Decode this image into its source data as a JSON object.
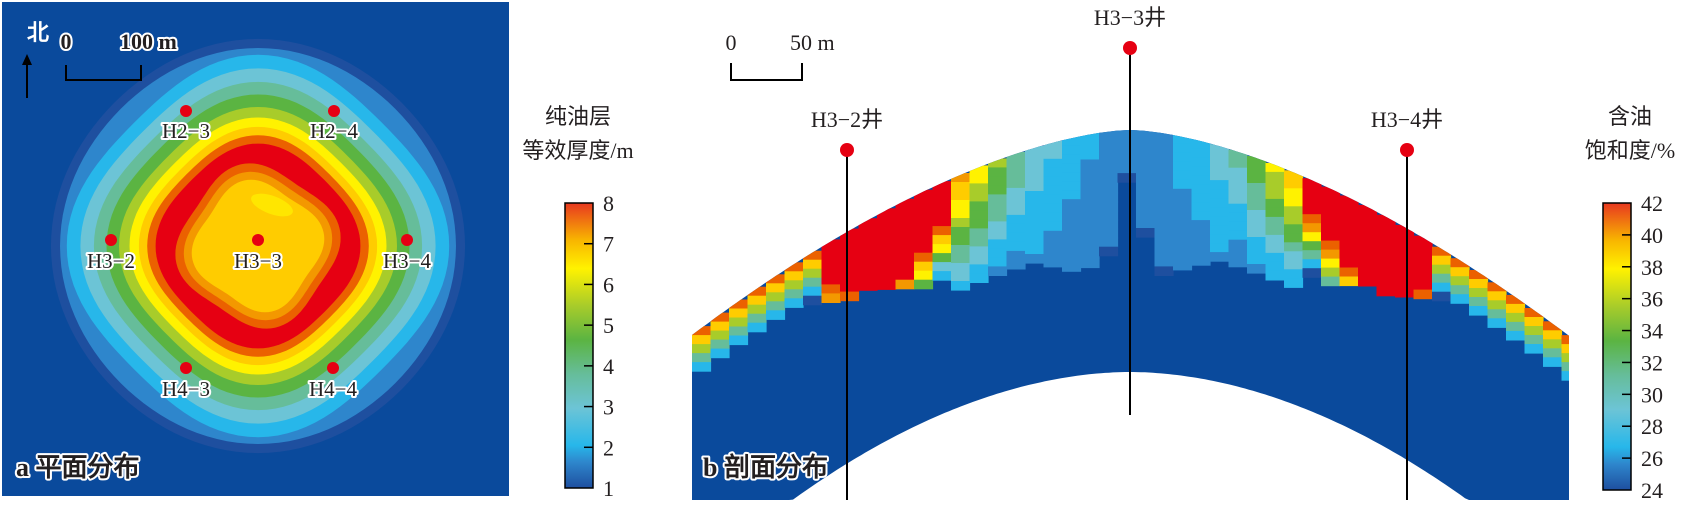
{
  "figure": {
    "panels": [
      {
        "id": "a",
        "title": "a 平面分布",
        "north_label": "北",
        "scale_bar": {
          "zero": "0",
          "end": "100 m"
        },
        "wells": [
          {
            "name": "H2−3"
          },
          {
            "name": "H2−4"
          },
          {
            "name": "H3−2"
          },
          {
            "name": "H3−3"
          },
          {
            "name": "H3−4"
          },
          {
            "name": "H4−3"
          },
          {
            "name": "H4−4"
          }
        ],
        "colorbar": {
          "title_line1": "纯油层",
          "title_line2": "等效厚度/m",
          "ticks": [
            "8",
            "7",
            "6",
            "5",
            "4",
            "3",
            "2",
            "1"
          ],
          "min": 1,
          "max": 8
        }
      },
      {
        "id": "b",
        "title": "b 剖面分布",
        "scale_bar": {
          "zero": "0",
          "end": "50 m"
        },
        "wells": [
          {
            "name": "H3−2井"
          },
          {
            "name": "H3−3井"
          },
          {
            "name": "H3−4井"
          }
        ],
        "colorbar": {
          "title_line1": "含油",
          "title_line2": "饱和度/%",
          "ticks": [
            "42",
            "40",
            "38",
            "36",
            "34",
            "32",
            "30",
            "28",
            "26",
            "24"
          ],
          "min": 24,
          "max": 42
        }
      }
    ]
  },
  "colors": {
    "background_blue": "#0a4a9c",
    "well_marker": "#e60012",
    "text": "#231f20",
    "colormap": [
      "#1e4f9f",
      "#2e86cc",
      "#27b7ea",
      "#6cc4d6",
      "#66bd9a",
      "#5bb442",
      "#a8cc2a",
      "#fff200",
      "#ffcc00",
      "#f39800",
      "#eb6100",
      "#e60012"
    ]
  },
  "chart_data": [
    {
      "type": "heatmap",
      "title": "a 平面分布",
      "description": "Plan-view contour map of pure-oil-layer equivalent thickness",
      "colorbar_label": "纯油层等效厚度/m",
      "value_range": [
        1,
        8
      ],
      "wells": [
        "H2-3",
        "H2-4",
        "H3-2",
        "H3-3",
        "H3-4",
        "H4-3",
        "H4-4"
      ],
      "center_well": "H3-3",
      "center_value_approx": 6.5,
      "ring_peak_value_approx": 8,
      "outer_value": 1,
      "scale": "0–100 m"
    },
    {
      "type": "heatmap",
      "title": "b 剖面分布",
      "description": "Cross-section of oil saturation across anticline through H3-2, H3-3, H3-4",
      "colorbar_label": "含油饱和度/%",
      "value_range": [
        24,
        42
      ],
      "wells": [
        "H3-2井",
        "H3-3井",
        "H3-4井"
      ],
      "crest_value_approx": 24,
      "flank_peak_value_approx": 42,
      "scale": "0–50 m"
    }
  ]
}
